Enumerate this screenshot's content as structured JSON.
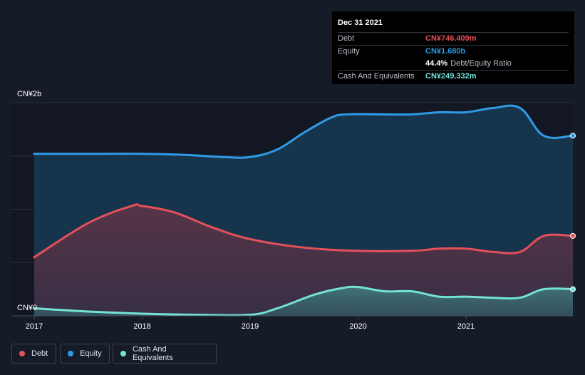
{
  "chart_data": {
    "type": "area",
    "title": "",
    "y_axis_top_label": "CN¥2b",
    "y_axis_bottom_label": "CN¥0",
    "ylim": [
      0,
      2.0
    ],
    "xlim": [
      2017.0,
      2021.99
    ],
    "x_ticks": [
      {
        "value": 2017,
        "label": "2017"
      },
      {
        "value": 2018,
        "label": "2018"
      },
      {
        "value": 2019,
        "label": "2019"
      },
      {
        "value": 2020,
        "label": "2020"
      },
      {
        "value": 2021,
        "label": "2021"
      }
    ],
    "gridlines": [
      0.5,
      1.0,
      1.5,
      2.0
    ],
    "series": [
      {
        "name": "Equity",
        "color": "#2f9be6",
        "points": [
          [
            2017.0,
            1.52
          ],
          [
            2017.5,
            1.52
          ],
          [
            2018.0,
            1.52
          ],
          [
            2018.4,
            1.51
          ],
          [
            2018.75,
            1.49
          ],
          [
            2019.0,
            1.49
          ],
          [
            2019.25,
            1.56
          ],
          [
            2019.5,
            1.72
          ],
          [
            2019.75,
            1.86
          ],
          [
            2019.9,
            1.89
          ],
          [
            2020.25,
            1.89
          ],
          [
            2020.5,
            1.89
          ],
          [
            2020.75,
            1.91
          ],
          [
            2021.0,
            1.91
          ],
          [
            2021.25,
            1.95
          ],
          [
            2021.5,
            1.95
          ],
          [
            2021.72,
            1.69
          ],
          [
            2021.99,
            1.69
          ]
        ]
      },
      {
        "name": "Debt",
        "color": "#e5505a",
        "points": [
          [
            2017.0,
            0.55
          ],
          [
            2017.5,
            0.87
          ],
          [
            2017.9,
            1.03
          ],
          [
            2018.0,
            1.03
          ],
          [
            2018.3,
            0.97
          ],
          [
            2018.65,
            0.83
          ],
          [
            2019.0,
            0.72
          ],
          [
            2019.5,
            0.64
          ],
          [
            2020.0,
            0.61
          ],
          [
            2020.5,
            0.61
          ],
          [
            2020.75,
            0.63
          ],
          [
            2021.0,
            0.63
          ],
          [
            2021.25,
            0.6
          ],
          [
            2021.5,
            0.6
          ],
          [
            2021.72,
            0.75
          ],
          [
            2021.99,
            0.75
          ]
        ]
      },
      {
        "name": "Cash And Equivalents",
        "color": "#74e3d6",
        "points": [
          [
            2017.0,
            0.07
          ],
          [
            2017.5,
            0.04
          ],
          [
            2018.0,
            0.02
          ],
          [
            2018.5,
            0.01
          ],
          [
            2019.0,
            0.01
          ],
          [
            2019.25,
            0.07
          ],
          [
            2019.6,
            0.2
          ],
          [
            2019.85,
            0.26
          ],
          [
            2020.0,
            0.27
          ],
          [
            2020.25,
            0.23
          ],
          [
            2020.5,
            0.23
          ],
          [
            2020.75,
            0.18
          ],
          [
            2021.0,
            0.18
          ],
          [
            2021.25,
            0.17
          ],
          [
            2021.5,
            0.17
          ],
          [
            2021.72,
            0.25
          ],
          [
            2021.99,
            0.25
          ]
        ]
      }
    ],
    "tooltip": {
      "date": "Dec 31 2021",
      "rows": [
        {
          "label": "Debt",
          "value": "CN¥746.409m",
          "color": "#e5505a"
        },
        {
          "label": "Equity",
          "value": "CN¥1.680b",
          "color": "#2f9be6"
        },
        {
          "label": "",
          "value": "44.4%",
          "color": "#ffffff",
          "suffix": "Debt/Equity Ratio"
        },
        {
          "label": "Cash And Equivalents",
          "value": "CN¥249.332m",
          "color": "#74e3d6"
        }
      ]
    },
    "legend": [
      {
        "label": "Debt",
        "color": "#e5505a"
      },
      {
        "label": "Equity",
        "color": "#2f9be6"
      },
      {
        "label": "Cash And Equivalents",
        "color": "#74e3d6"
      }
    ]
  }
}
